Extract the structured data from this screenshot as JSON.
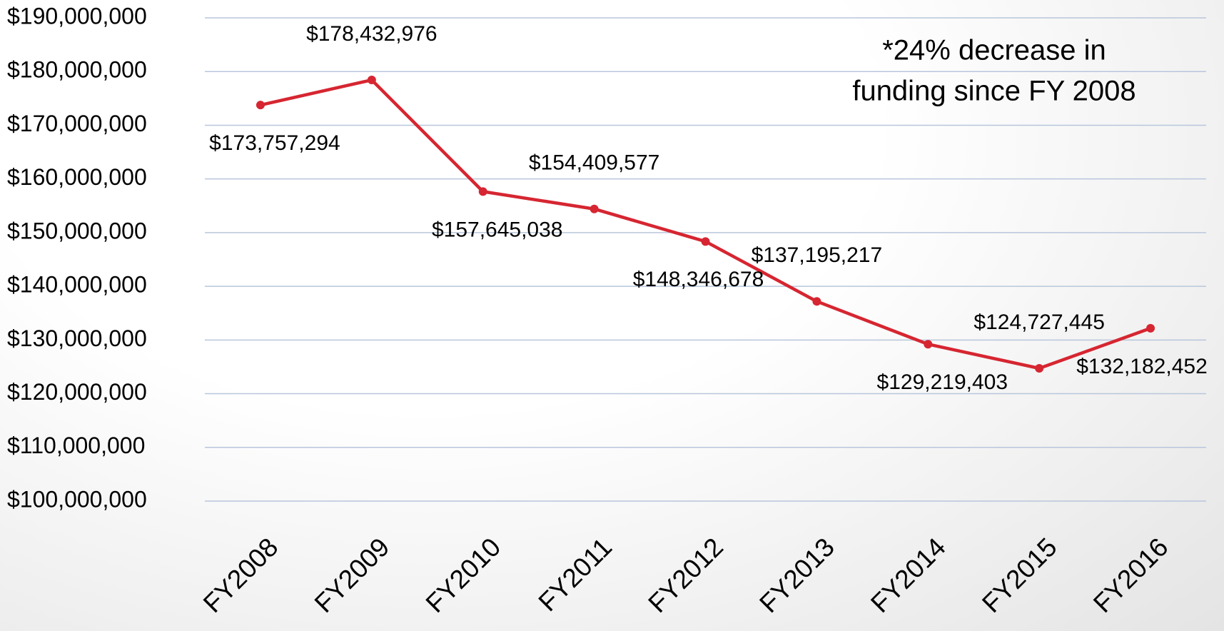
{
  "chart_data": {
    "type": "line",
    "annotation": [
      "*24% decrease in",
      "funding since FY 2008"
    ],
    "categories": [
      "FY2008",
      "FY2009",
      "FY2010",
      "FY2011",
      "FY2012",
      "FY2013",
      "FY2014",
      "FY2015",
      "FY2016"
    ],
    "series": [
      {
        "color": "#d62631",
        "values": [
          173757294,
          178432976,
          157645038,
          154409577,
          148346678,
          137195217,
          129219403,
          124727445,
          132182452
        ],
        "value_labels": [
          "$173,757,294",
          "$178,432,976",
          "$157,645,038",
          "$154,409,577",
          "$148,346,678",
          "$137,195,217",
          "$129,219,403",
          "$124,727,445",
          "$132,182,452"
        ]
      }
    ],
    "ylim": [
      100000000,
      190000000
    ],
    "yticks": [
      {
        "value": 100000000,
        "label": "$100,000,000"
      },
      {
        "value": 110000000,
        "label": "$110,000,000"
      },
      {
        "value": 120000000,
        "label": "$120,000,000"
      },
      {
        "value": 130000000,
        "label": "$130,000,000"
      },
      {
        "value": 140000000,
        "label": "$140,000,000"
      },
      {
        "value": 150000000,
        "label": "$150,000,000"
      },
      {
        "value": 160000000,
        "label": "$160,000,000"
      },
      {
        "value": 170000000,
        "label": "$170,000,000"
      },
      {
        "value": 180000000,
        "label": "$180,000,000"
      },
      {
        "value": 190000000,
        "label": "$190,000,000"
      }
    ],
    "grid": true
  }
}
